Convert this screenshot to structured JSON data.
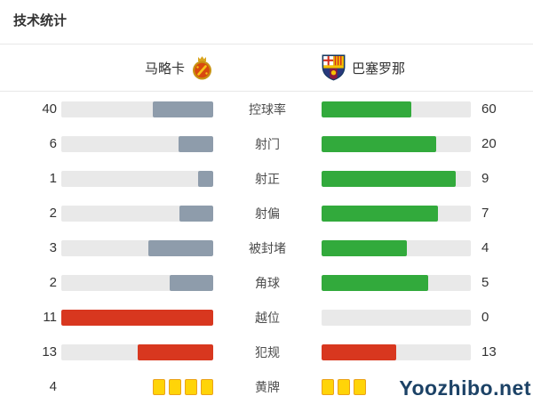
{
  "title": "技术统计",
  "teams": {
    "home": {
      "name": "马略卡"
    },
    "away": {
      "name": "巴塞罗那"
    }
  },
  "colors": {
    "track": "#e9e9e9",
    "home_bar": "#8e9cab",
    "away_bar": "#32aa3c",
    "negative_bar": "#d8371f",
    "yellow_card": "#ffd408"
  },
  "rows": [
    {
      "label": "控球率",
      "left": {
        "value": "40",
        "pct": 40,
        "color": "#8e9cab"
      },
      "right": {
        "value": "60",
        "pct": 60,
        "color": "#32aa3c"
      }
    },
    {
      "label": "射门",
      "left": {
        "value": "6",
        "pct": 23.1,
        "color": "#8e9cab"
      },
      "right": {
        "value": "20",
        "pct": 76.9,
        "color": "#32aa3c"
      }
    },
    {
      "label": "射正",
      "left": {
        "value": "1",
        "pct": 10,
        "color": "#8e9cab"
      },
      "right": {
        "value": "9",
        "pct": 90,
        "color": "#32aa3c"
      }
    },
    {
      "label": "射偏",
      "left": {
        "value": "2",
        "pct": 22.2,
        "color": "#8e9cab"
      },
      "right": {
        "value": "7",
        "pct": 77.8,
        "color": "#32aa3c"
      }
    },
    {
      "label": "被封堵",
      "left": {
        "value": "3",
        "pct": 42.9,
        "color": "#8e9cab"
      },
      "right": {
        "value": "4",
        "pct": 57.1,
        "color": "#32aa3c"
      }
    },
    {
      "label": "角球",
      "left": {
        "value": "2",
        "pct": 28.6,
        "color": "#8e9cab"
      },
      "right": {
        "value": "5",
        "pct": 71.4,
        "color": "#32aa3c"
      }
    },
    {
      "label": "越位",
      "left": {
        "value": "11",
        "pct": 100,
        "color": "#d8371f"
      },
      "right": {
        "value": "0",
        "pct": 0,
        "color": "#d8371f"
      }
    },
    {
      "label": "犯规",
      "left": {
        "value": "13",
        "pct": 50,
        "color": "#d8371f"
      },
      "right": {
        "value": "13",
        "pct": 50,
        "color": "#d8371f"
      }
    }
  ],
  "cards": {
    "label": "黄牌",
    "left": {
      "value": "4",
      "count": 4
    },
    "right": {
      "value": "",
      "count": 3
    }
  },
  "watermark": "Yoozhibo.net",
  "chart_data": {
    "type": "bar",
    "title": "技术统计",
    "orientation": "horizontal-paired",
    "categories": [
      "控球率",
      "射门",
      "射正",
      "射偏",
      "被封堵",
      "角球",
      "越位",
      "犯规",
      "黄牌"
    ],
    "series": [
      {
        "name": "马略卡",
        "values": [
          40,
          6,
          1,
          2,
          3,
          2,
          11,
          13,
          4
        ]
      },
      {
        "name": "巴塞罗那",
        "values": [
          60,
          20,
          9,
          7,
          4,
          5,
          0,
          13,
          3
        ]
      }
    ],
    "notes": "每行条形按两队数值占比填充；越位与犯规行用红色，其余左侧蓝灰、右侧绿色；黄牌行以黄牌图标计数显示"
  }
}
